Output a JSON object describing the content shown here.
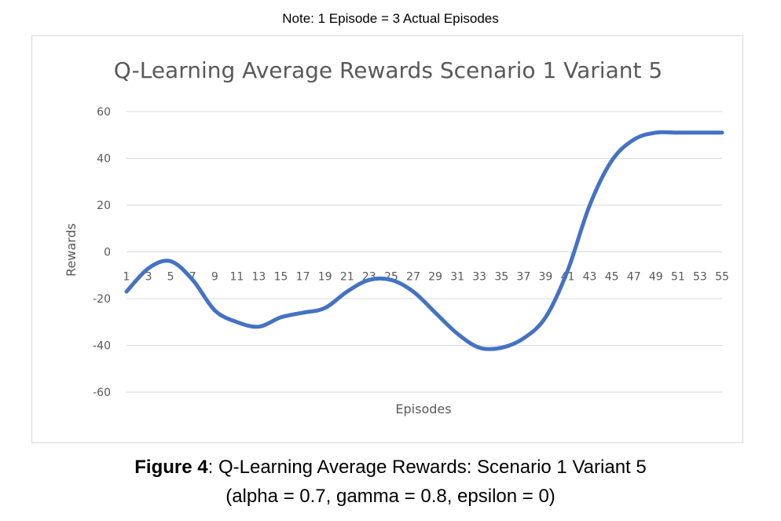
{
  "note": "Note: 1 Episode = 3 Actual Episodes",
  "caption": {
    "figure_label": "Figure 4",
    "line1_rest": ": Q-Learning Average Rewards: Scenario 1 Variant 5",
    "line2": "(alpha = 0.7, gamma = 0.8, epsilon = 0)"
  },
  "chart_data": {
    "type": "line",
    "title": "Q-Learning Average Rewards Scenario 1 Variant 5",
    "xlabel": "Episodes",
    "ylabel": "Rewards",
    "ylim": [
      -60,
      60
    ],
    "yticks": [
      60,
      40,
      20,
      0,
      -20,
      -40,
      -60
    ],
    "grid": true,
    "line_color": "#4472c4",
    "grid_color": "#d9d9d9",
    "x_tick_labels": [
      "1",
      "3",
      "5",
      "7",
      "9",
      "11",
      "13",
      "15",
      "17",
      "19",
      "21",
      "23",
      "25",
      "27",
      "29",
      "31",
      "33",
      "35",
      "37",
      "39",
      "41",
      "43",
      "45",
      "47",
      "49",
      "51",
      "53",
      "55"
    ],
    "series": [
      {
        "x": [
          1,
          3,
          5,
          7,
          9,
          11,
          13,
          15,
          17,
          19,
          21,
          23,
          25,
          27,
          29,
          31,
          33,
          35,
          37,
          39,
          41,
          43,
          45,
          47,
          49,
          51,
          53,
          55
        ],
        "values": [
          -17,
          -7,
          -4,
          -12,
          -25,
          -30,
          -32,
          -28,
          -26,
          -24,
          -17,
          -12,
          -12,
          -17,
          -26,
          -35,
          -41,
          -41,
          -37,
          -28,
          -8,
          20,
          39,
          48,
          51,
          51,
          51,
          51
        ]
      }
    ]
  }
}
